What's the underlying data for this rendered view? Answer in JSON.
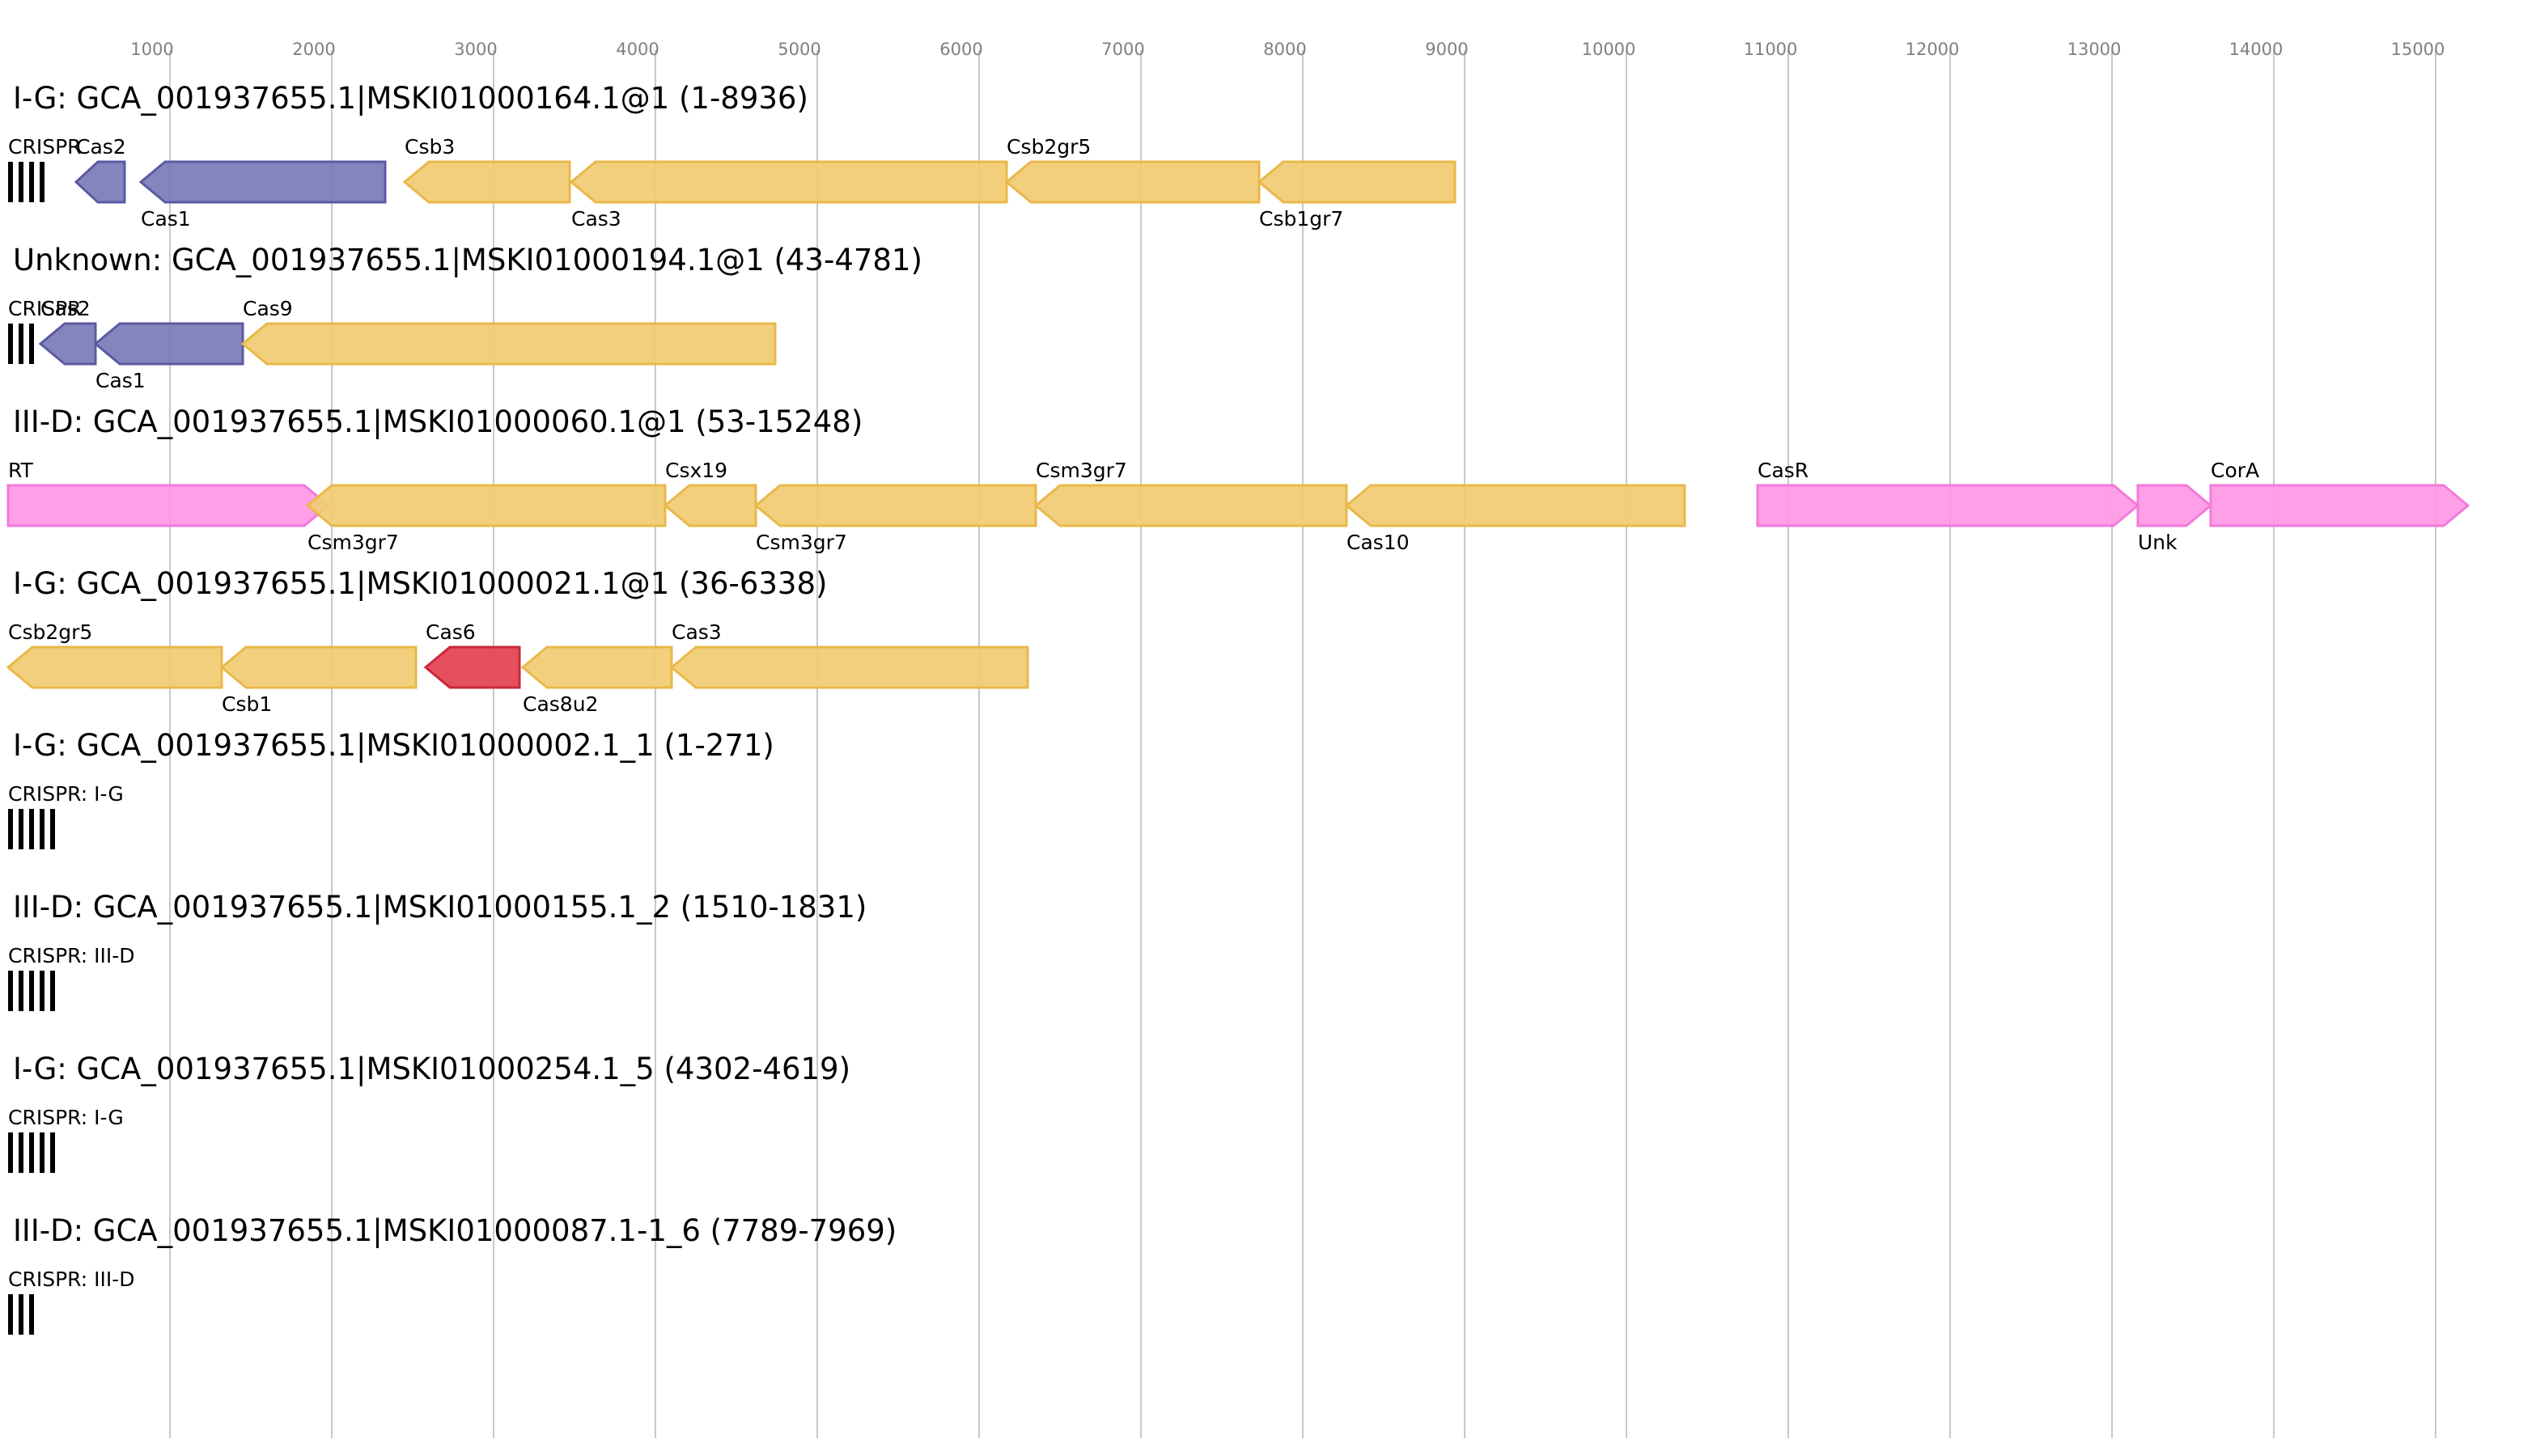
{
  "axis": {
    "ticks": [
      1000,
      2000,
      3000,
      4000,
      5000,
      6000,
      7000,
      8000,
      9000,
      10000,
      11000,
      12000,
      13000,
      14000,
      15000
    ],
    "range": [
      0,
      15300
    ]
  },
  "colors": {
    "blue": "#7b7bb8",
    "blue_stroke": "#5a5aa3",
    "yellow": "#f1cb72",
    "yellow_stroke": "#e9b84a",
    "red": "#e3414f",
    "red_stroke": "#c9283a",
    "pink": "#ff97e6",
    "pink_stroke": "#f27ad9",
    "grid": "#c8c8c8",
    "tick_text": "#808080",
    "text": "#000000"
  },
  "tracks": [
    {
      "title": "I-G: GCA_001937655.1|MSKI01000164.1@1 (1-8936)",
      "crispr": {
        "label": "CRISPR",
        "bars": 4
      },
      "genes": [
        {
          "label": "Cas2",
          "start": 420,
          "end": 720,
          "strand": -1,
          "color": "blue",
          "label_pos": "top"
        },
        {
          "label": "Cas1",
          "start": 820,
          "end": 2330,
          "strand": -1,
          "color": "blue",
          "label_pos": "bottom"
        },
        {
          "label": "Csb3",
          "start": 2450,
          "end": 3470,
          "strand": -1,
          "color": "yellow",
          "label_pos": "top"
        },
        {
          "label": "Cas3",
          "start": 3480,
          "end": 6170,
          "strand": -1,
          "color": "yellow",
          "label_pos": "bottom"
        },
        {
          "label": "Csb2gr5",
          "start": 6170,
          "end": 7730,
          "strand": -1,
          "color": "yellow",
          "label_pos": "top"
        },
        {
          "label": "Csb1gr7",
          "start": 7730,
          "end": 8940,
          "strand": -1,
          "color": "yellow",
          "label_pos": "bottom"
        }
      ]
    },
    {
      "title": "Unknown: GCA_001937655.1|MSKI01000194.1@1 (43-4781)",
      "crispr": {
        "label": "CRISPR",
        "bars": 3
      },
      "genes": [
        {
          "label": "Cas2",
          "start": 200,
          "end": 540,
          "strand": -1,
          "color": "blue",
          "label_pos": "top"
        },
        {
          "label": "Cas1",
          "start": 540,
          "end": 1450,
          "strand": -1,
          "color": "blue",
          "label_pos": "bottom"
        },
        {
          "label": "Cas9",
          "start": 1450,
          "end": 4740,
          "strand": -1,
          "color": "yellow",
          "label_pos": "top"
        }
      ]
    },
    {
      "title": "III-D: GCA_001937655.1|MSKI01000060.1@1 (53-15248)",
      "crispr": null,
      "genes": [
        {
          "label": "RT",
          "start": 0,
          "end": 1980,
          "strand": 1,
          "color": "pink",
          "label_pos": "top"
        },
        {
          "label": "Csm3gr7",
          "start": 1850,
          "end": 4060,
          "strand": -1,
          "color": "yellow",
          "label_pos": "bottom"
        },
        {
          "label": "Csx19",
          "start": 4060,
          "end": 4620,
          "strand": -1,
          "color": "yellow",
          "label_pos": "top"
        },
        {
          "label": "Csm3gr7",
          "start": 4620,
          "end": 6350,
          "strand": -1,
          "color": "yellow",
          "label_pos": "bottom"
        },
        {
          "label": "Csm3gr7",
          "start": 6350,
          "end": 8270,
          "strand": -1,
          "color": "yellow",
          "label_pos": "top"
        },
        {
          "label": "Cas10",
          "start": 8270,
          "end": 10360,
          "strand": -1,
          "color": "yellow",
          "label_pos": "bottom"
        },
        {
          "label": "CasR",
          "start": 10810,
          "end": 13160,
          "strand": 1,
          "color": "pink",
          "label_pos": "top"
        },
        {
          "label": "Unk",
          "start": 13160,
          "end": 13610,
          "strand": 1,
          "color": "pink",
          "label_pos": "bottom"
        },
        {
          "label": "CorA",
          "start": 13610,
          "end": 15200,
          "strand": 1,
          "color": "pink",
          "label_pos": "top"
        }
      ]
    },
    {
      "title": "I-G: GCA_001937655.1|MSKI01000021.1@1 (36-6338)",
      "crispr": null,
      "genes": [
        {
          "label": "Csb2gr5",
          "start": 0,
          "end": 1320,
          "strand": -1,
          "color": "yellow",
          "label_pos": "top"
        },
        {
          "label": "Csb1",
          "start": 1320,
          "end": 2520,
          "strand": -1,
          "color": "yellow",
          "label_pos": "bottom"
        },
        {
          "label": "Cas6",
          "start": 2580,
          "end": 3160,
          "strand": -1,
          "color": "red",
          "label_pos": "top"
        },
        {
          "label": "Cas8u2",
          "start": 3180,
          "end": 4100,
          "strand": -1,
          "color": "yellow",
          "label_pos": "bottom"
        },
        {
          "label": "Cas3",
          "start": 4100,
          "end": 6300,
          "strand": -1,
          "color": "yellow",
          "label_pos": "top"
        }
      ]
    },
    {
      "title": "I-G: GCA_001937655.1|MSKI01000002.1_1 (1-271)",
      "crispr": {
        "label": "CRISPR: I-G",
        "bars": 5
      },
      "genes": []
    },
    {
      "title": "III-D: GCA_001937655.1|MSKI01000155.1_2 (1510-1831)",
      "crispr": {
        "label": "CRISPR: III-D",
        "bars": 5
      },
      "genes": []
    },
    {
      "title": "I-G: GCA_001937655.1|MSKI01000254.1_5 (4302-4619)",
      "crispr": {
        "label": "CRISPR: I-G",
        "bars": 5
      },
      "genes": []
    },
    {
      "title": "III-D: GCA_001937655.1|MSKI01000087.1-1_6 (7789-7969)",
      "crispr": {
        "label": "CRISPR: III-D",
        "bars": 3
      },
      "genes": []
    }
  ]
}
